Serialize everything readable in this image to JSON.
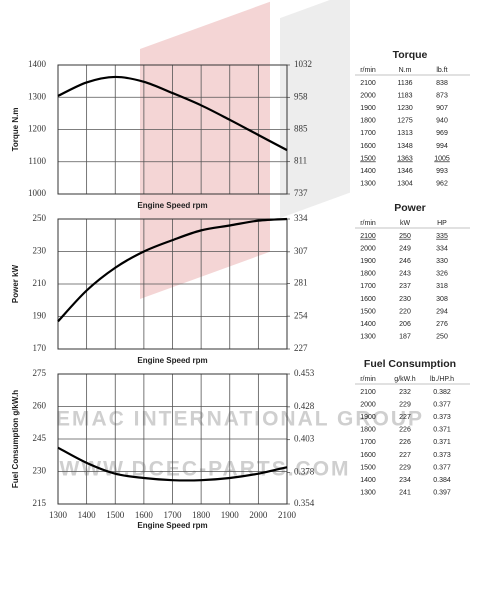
{
  "chart_data": [
    {
      "type": "line",
      "x_label": "Engine Speed rpm",
      "y_label": "Torque  N.m",
      "x": [
        1300,
        1400,
        1500,
        1600,
        1700,
        1800,
        1900,
        2000,
        2100
      ],
      "series": [
        {
          "color": "#000000",
          "values": [
            1304,
            1346,
            1363,
            1348,
            1313,
            1275,
            1230,
            1183,
            1136
          ]
        }
      ],
      "xlim": [
        1300,
        2100
      ],
      "xticks": [
        1300,
        1400,
        1500,
        1600,
        1700,
        1800,
        1900,
        2000,
        2100
      ],
      "show_xtick_labels": false,
      "ylim": [
        1000,
        1400
      ],
      "yticks": [
        1000,
        1100,
        1200,
        1300,
        1400
      ],
      "y2lim": [
        737,
        1032
      ],
      "y2ticks": [
        737,
        811,
        885,
        958,
        1032
      ],
      "grid": true
    },
    {
      "type": "line",
      "x_label": "Engine Speed rpm",
      "y_label": "Power  kW",
      "x": [
        1300,
        1400,
        1500,
        1600,
        1700,
        1800,
        1900,
        2000,
        2100
      ],
      "series": [
        {
          "color": "#000000",
          "values": [
            187,
            206,
            220,
            230,
            237,
            243,
            246,
            249,
            250
          ]
        }
      ],
      "xlim": [
        1300,
        2100
      ],
      "xticks": [
        1300,
        1400,
        1500,
        1600,
        1700,
        1800,
        1900,
        2000,
        2100
      ],
      "show_xtick_labels": false,
      "ylim": [
        170,
        250
      ],
      "yticks": [
        170,
        190,
        210,
        230,
        250
      ],
      "y2lim": [
        227,
        334
      ],
      "y2ticks": [
        227,
        254,
        281,
        307,
        334
      ],
      "grid": true
    },
    {
      "type": "line",
      "x_label": "Engine Speed rpm",
      "y_label": "Fuel Consumption  g/kW.h",
      "x": [
        1300,
        1400,
        1500,
        1600,
        1700,
        1800,
        1900,
        2000,
        2100
      ],
      "series": [
        {
          "color": "#000000",
          "values": [
            241,
            234,
            229,
            227,
            226,
            226,
            227,
            229,
            232
          ]
        }
      ],
      "xlim": [
        1300,
        2100
      ],
      "xticks": [
        1300,
        1400,
        1500,
        1600,
        1700,
        1800,
        1900,
        2000,
        2100
      ],
      "show_xtick_labels": true,
      "ylim": [
        215,
        275
      ],
      "yticks": [
        215,
        230,
        245,
        260,
        275
      ],
      "y2lim": [
        0.354,
        0.453
      ],
      "y2ticks": [
        0.354,
        0.378,
        0.403,
        0.428,
        0.453
      ],
      "grid": true
    }
  ],
  "tables": [
    {
      "title": "Torque",
      "columns": [
        "r/min",
        "N.m",
        "lb.ft"
      ],
      "highlight_row": 6,
      "rows": [
        [
          "2100",
          "1136",
          "838"
        ],
        [
          "2000",
          "1183",
          "873"
        ],
        [
          "1900",
          "1230",
          "907"
        ],
        [
          "1800",
          "1275",
          "940"
        ],
        [
          "1700",
          "1313",
          "969"
        ],
        [
          "1600",
          "1348",
          "994"
        ],
        [
          "1500",
          "1363",
          "1005"
        ],
        [
          "1400",
          "1346",
          "993"
        ],
        [
          "1300",
          "1304",
          "962"
        ]
      ]
    },
    {
      "title": "Power",
      "columns": [
        "r/min",
        "kW",
        "HP"
      ],
      "highlight_row": 0,
      "rows": [
        [
          "2100",
          "250",
          "335"
        ],
        [
          "2000",
          "249",
          "334"
        ],
        [
          "1900",
          "246",
          "330"
        ],
        [
          "1800",
          "243",
          "326"
        ],
        [
          "1700",
          "237",
          "318"
        ],
        [
          "1600",
          "230",
          "308"
        ],
        [
          "1500",
          "220",
          "294"
        ],
        [
          "1400",
          "206",
          "276"
        ],
        [
          "1300",
          "187",
          "250"
        ]
      ]
    },
    {
      "title": "Fuel Consumption",
      "columns": [
        "r/min",
        "g/kW.h",
        "lb./HP.h"
      ],
      "highlight_row": null,
      "rows": [
        [
          "2100",
          "232",
          "0.382"
        ],
        [
          "2000",
          "229",
          "0.377"
        ],
        [
          "1900",
          "227",
          "0.373"
        ],
        [
          "1800",
          "226",
          "0.371"
        ],
        [
          "1700",
          "226",
          "0.371"
        ],
        [
          "1600",
          "227",
          "0.373"
        ],
        [
          "1500",
          "229",
          "0.377"
        ],
        [
          "1400",
          "234",
          "0.384"
        ],
        [
          "1300",
          "241",
          "0.397"
        ]
      ]
    }
  ],
  "watermark": [
    "EMAC INTERNATIONAL GROUP",
    "WWW.DCEC-PARTS.COM"
  ]
}
